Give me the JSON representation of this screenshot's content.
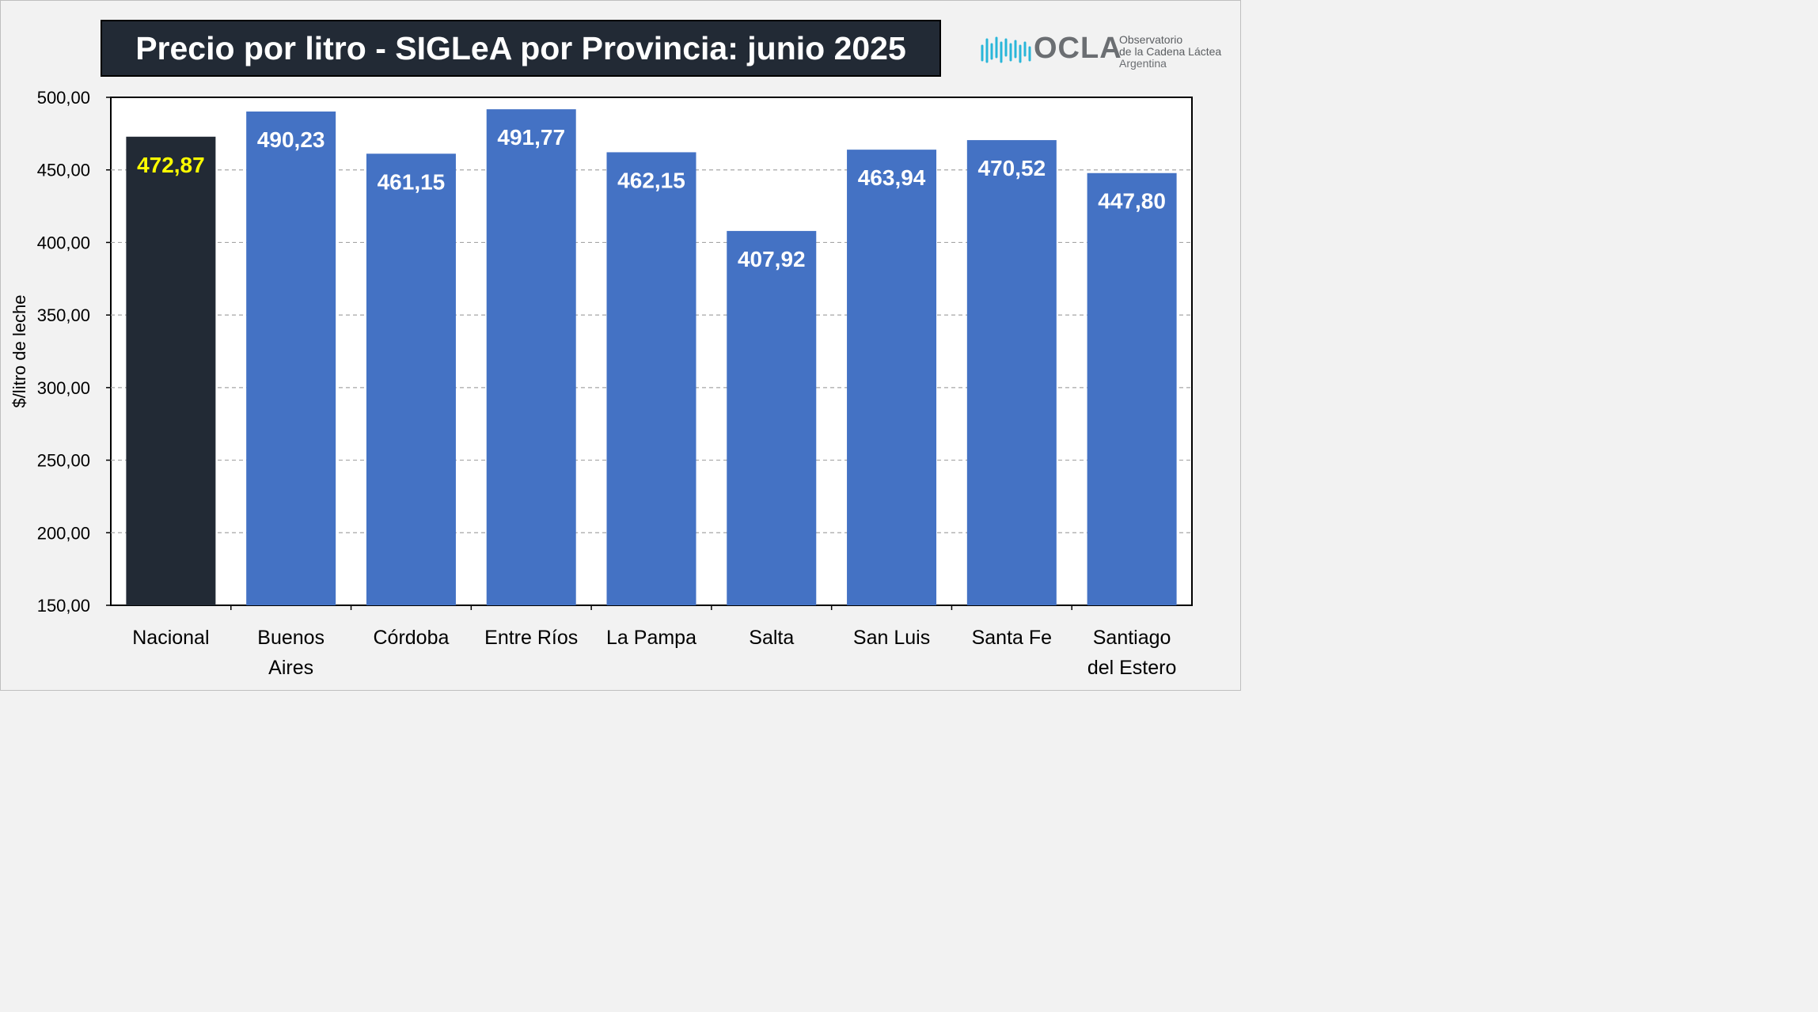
{
  "chart_data": {
    "type": "bar",
    "title": "Precio por litro - SIGLeA por Provincia: junio 2025",
    "ylabel": "$/litro de leche",
    "xlabel": "",
    "ylim": [
      150,
      500
    ],
    "yticks": [
      "150,00",
      "200,00",
      "250,00",
      "300,00",
      "350,00",
      "400,00",
      "450,00",
      "500,00"
    ],
    "ytick_values": [
      150,
      200,
      250,
      300,
      350,
      400,
      450,
      500
    ],
    "grid": "horizontal dashed",
    "categories": [
      [
        "Nacional"
      ],
      [
        "Buenos",
        "Aires"
      ],
      [
        "Córdoba"
      ],
      [
        "Entre Ríos"
      ],
      [
        "La Pampa"
      ],
      [
        "Salta"
      ],
      [
        "San Luis"
      ],
      [
        "Santa Fe"
      ],
      [
        "Santiago",
        "del Estero"
      ]
    ],
    "values": [
      472.87,
      490.23,
      461.15,
      491.77,
      462.15,
      407.92,
      463.94,
      470.52,
      447.8
    ],
    "value_labels": [
      "472,87",
      "490,23",
      "461,15",
      "491,77",
      "462,15",
      "407,92",
      "463,94",
      "470,52",
      "447,80"
    ],
    "colors": {
      "highlight_bar": "#222a35",
      "bar": "#4472c4",
      "highlight_label": "#ffff00",
      "label": "#ffffff"
    }
  },
  "logo": {
    "name": "OCLA",
    "line1": "Observatorio",
    "line2": "de la Cadena Láctea",
    "line3": "Argentina",
    "icon": "waveform-icon",
    "accent": "#29b6d9"
  }
}
